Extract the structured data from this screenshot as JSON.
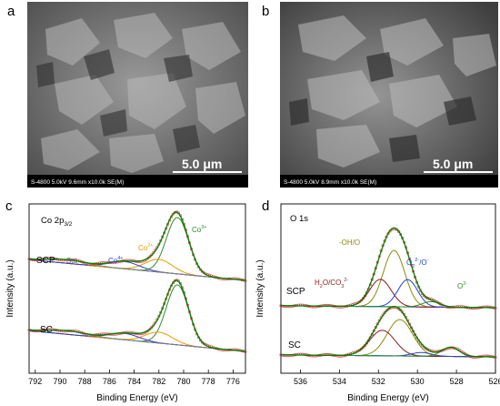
{
  "panels": {
    "a": {
      "letter": "a",
      "meta": "S-4800 5.0kV 9.6mm x10.0k SE(M)",
      "scale": "5.0 μm"
    },
    "b": {
      "letter": "b",
      "meta": "S-4800 5.0kV 8.9mm x10.0k SE(M)",
      "scale": "5.0 μm"
    },
    "c": {
      "letter": "c"
    },
    "d": {
      "letter": "d"
    }
  },
  "chart_data": [
    {
      "panel": "c",
      "type": "line",
      "title": "Co 2p3/2",
      "xlabel": "Binding Energy (eV)",
      "ylabel": "Intensity (a.u.)",
      "xlim": [
        792.5,
        775
      ],
      "x_reversed": true,
      "xticks": [
        792,
        790,
        788,
        786,
        784,
        782,
        780,
        778,
        776
      ],
      "spectra": [
        "SCP",
        "SC"
      ],
      "annotations": [
        "Sat",
        "Co4+",
        "Co2+",
        "Co3+"
      ],
      "peaks": [
        {
          "name": "Co3+",
          "center_eV": 780.5,
          "color": "#2e8b2e"
        },
        {
          "name": "Co2+",
          "center_eV": 782.0,
          "color": "#e69a00"
        },
        {
          "name": "Co4+",
          "center_eV": 784.8,
          "color": "#3a3acc"
        },
        {
          "name": "Sat",
          "center_eV": 789.5,
          "color": "#808080"
        }
      ]
    },
    {
      "panel": "d",
      "type": "line",
      "title": "O 1s",
      "xlabel": "Binding Energy (eV)",
      "ylabel": "Intensity (a.u.)",
      "xlim": [
        537,
        526
      ],
      "x_reversed": true,
      "xticks": [
        536,
        534,
        532,
        530,
        528,
        526
      ],
      "spectra": [
        "SCP",
        "SC"
      ],
      "annotations": [
        "-OH/O",
        "O2 2-/O-",
        "H2O/CO3 2-",
        "O2-"
      ],
      "peaks": [
        {
          "name": "-OH/O",
          "center_eV": 531.2,
          "color": "#8a8a10"
        },
        {
          "name": "H2O/CO3 2-",
          "center_eV": 531.9,
          "color": "#8b1a1a"
        },
        {
          "name": "O2 2-/O-",
          "center_eV": 530.5,
          "color": "#2244cc"
        },
        {
          "name": "O2-",
          "center_eV": 529.3,
          "color": "#2e8b2e"
        }
      ]
    }
  ],
  "labels": {
    "c_title": "Co 2p",
    "c_title_sub": "3/2",
    "c_scp": "SCP",
    "c_sat": "Sat",
    "c_co4": "Co",
    "c_co4_sup": "4+",
    "c_co2": "Co",
    "c_co2_sup": "2+",
    "c_co3": "Co",
    "c_co3_sup": "3+",
    "c_sc": "SC",
    "d_title": "O 1s",
    "d_oh": "-OH/O",
    "d_o22": "O",
    "d_o22_sub": "2",
    "d_o22_sup": "2-",
    "d_o22_tail": "/O",
    "d_o22_tail_sup": "-",
    "d_h2o": "H",
    "d_h2o_sub": "2",
    "d_h2o_mid": "O/CO",
    "d_h2o_sub2": "3",
    "d_h2o_sup": "2-",
    "d_o2": "O",
    "d_o2_sup": "2-",
    "d_scp": "SCP",
    "d_sc": "SC",
    "xlabel": "Binding Energy (eV)",
    "ylabel": "Intensity (a.u.)"
  }
}
